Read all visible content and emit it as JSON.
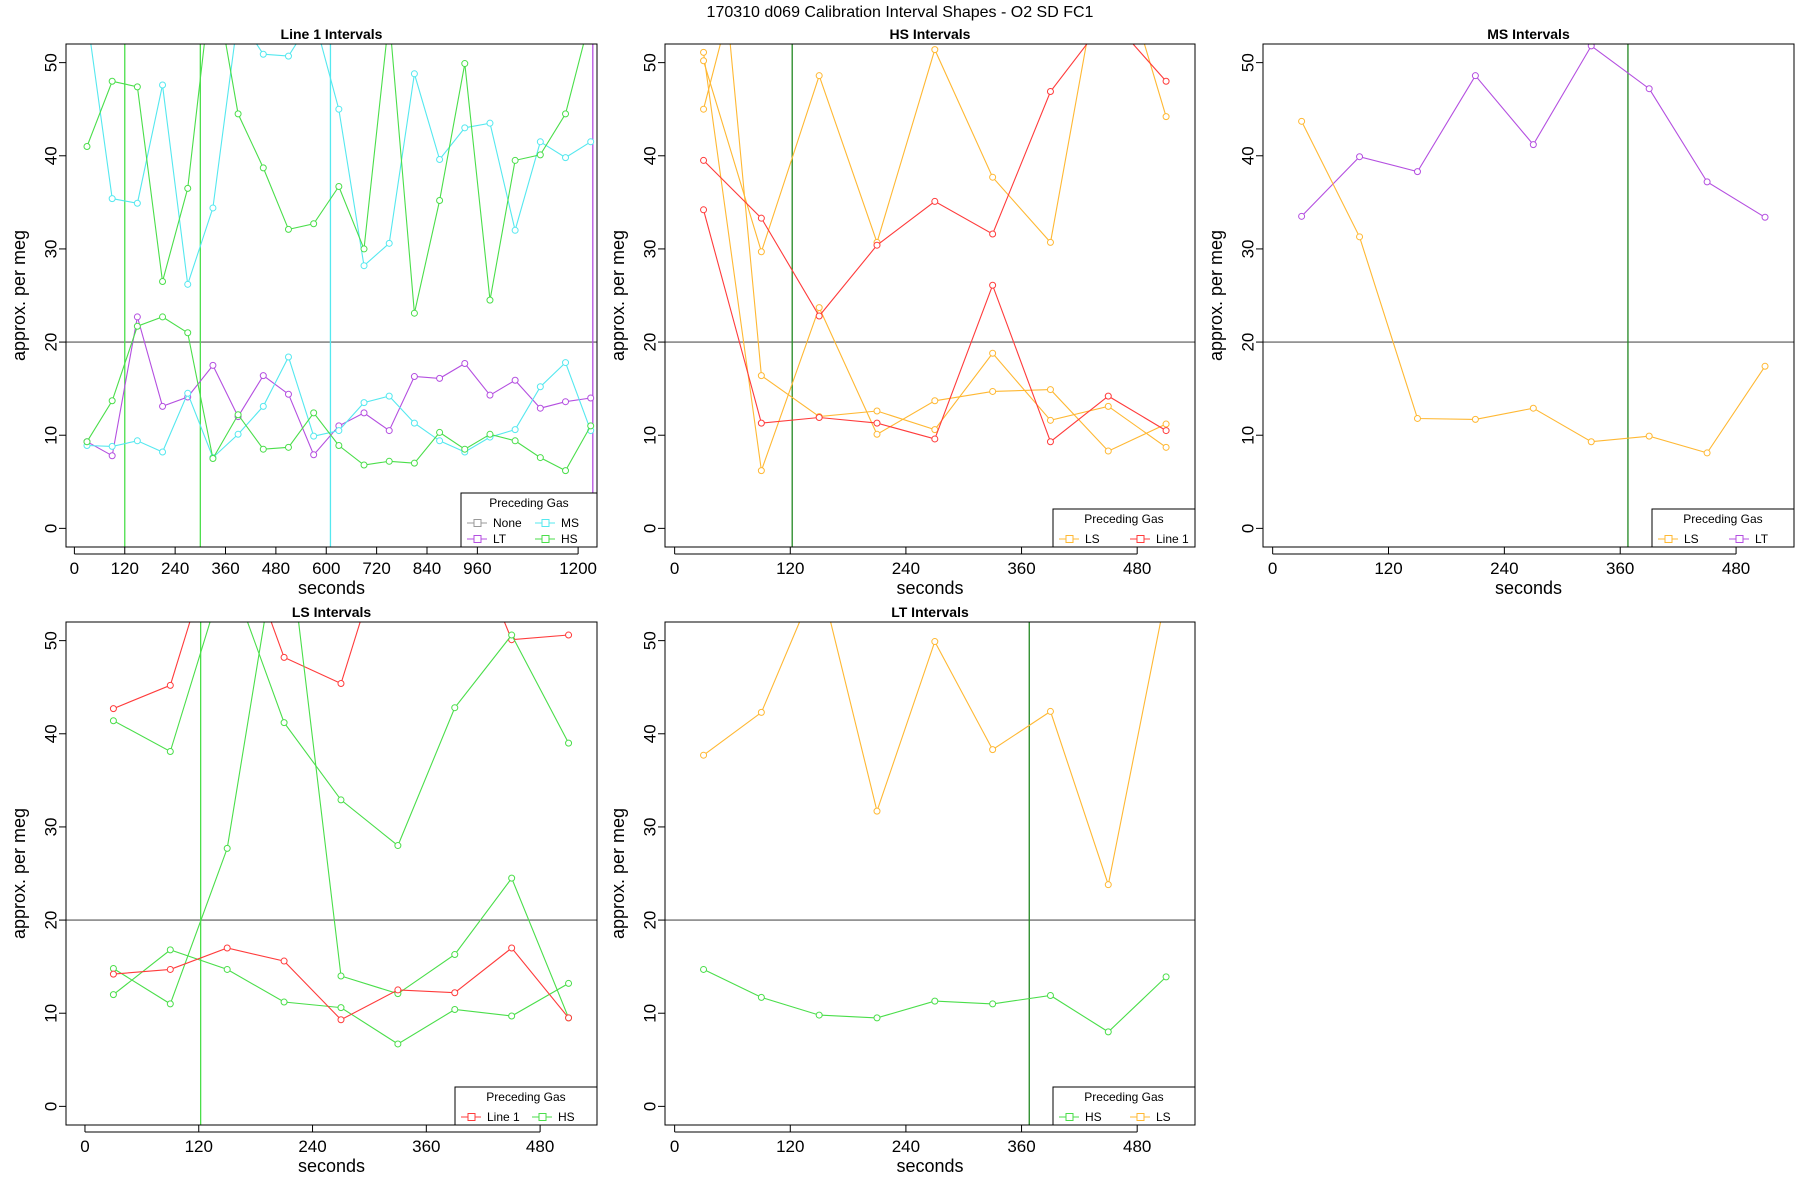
{
  "title": "170310   d069   Calibration Interval Shapes - O2 SD FC1",
  "colors": {
    "None": "#999999",
    "LT": "#b44fe0",
    "MS": "#55e8ef",
    "HS": "#4ade4a",
    "LS": "#ffb833",
    "Line 1": "#ff3b3b",
    "vline": "#228822",
    "hline": "#555555"
  },
  "chart_data": [
    {
      "type": "line",
      "title": "Line 1 Intervals",
      "xlabel": "seconds",
      "ylabel": "approx. per meg",
      "xlim": [
        -20,
        1245
      ],
      "ylim": [
        -2,
        52
      ],
      "xticks": [
        0,
        120,
        240,
        360,
        480,
        600,
        720,
        840,
        960,
        1200
      ],
      "xtick_labels": [
        "0",
        "120",
        "240",
        "360",
        "480",
        "600",
        "720",
        "840",
        "960",
        "1200"
      ],
      "yticks": [
        0,
        10,
        20,
        30,
        40,
        50
      ],
      "hline": 20,
      "vlines": [
        {
          "x": 120,
          "color": "HS"
        },
        {
          "x": 300,
          "color": "HS"
        },
        {
          "x": 610,
          "color": "MS"
        },
        {
          "x": 1235,
          "color": "LT"
        }
      ],
      "legend": {
        "title": "Preceding Gas",
        "position": "bottom-right",
        "entries": [
          "None",
          "MS",
          "LT",
          "HS"
        ]
      },
      "series": [
        {
          "name": "MS",
          "color": "MS",
          "x": [
            30,
            90,
            150,
            210,
            270,
            330,
            390,
            450,
            510,
            570,
            630,
            690,
            750,
            810,
            870,
            930,
            990,
            1050,
            1110,
            1170,
            1230
          ],
          "y": [
            55,
            35.4,
            34.9,
            47.6,
            26.2,
            34.4,
            55,
            50.9,
            50.7,
            55,
            45,
            28.2,
            30.6,
            48.8,
            39.6,
            43,
            43.5,
            32,
            41.5,
            39.8,
            41.5
          ]
        },
        {
          "name": "HS",
          "color": "HS",
          "x": [
            30,
            90,
            150,
            210,
            270,
            330,
            390,
            450,
            510,
            570,
            630,
            690,
            750,
            810,
            870,
            930,
            990,
            1050,
            1110,
            1170,
            1230
          ],
          "y": [
            41,
            48,
            47.4,
            26.5,
            36.5,
            60,
            44.5,
            38.7,
            32.1,
            32.7,
            36.7,
            30,
            55,
            23.1,
            35.2,
            49.9,
            24.5,
            39.5,
            40.1,
            44.5,
            55
          ]
        },
        {
          "name": "LT",
          "color": "LT",
          "x": [
            30,
            90,
            150,
            210,
            270,
            330,
            390,
            450,
            510,
            570,
            630,
            690,
            750,
            810,
            870,
            930,
            990,
            1050,
            1110,
            1170,
            1230
          ],
          "y": [
            9.3,
            7.8,
            22.7,
            13.1,
            14.1,
            17.5,
            12,
            16.4,
            14.4,
            7.9,
            11,
            12.4,
            10.5,
            16.3,
            16.1,
            17.7,
            14.3,
            15.9,
            12.9,
            13.6,
            14
          ]
        },
        {
          "name": "MS",
          "color": "MS",
          "x": [
            30,
            90,
            150,
            210,
            270,
            330,
            390,
            450,
            510,
            570,
            630,
            690,
            750,
            810,
            870,
            930,
            990,
            1050,
            1110,
            1170,
            1230
          ],
          "y": [
            8.9,
            8.8,
            9.4,
            8.2,
            14.5,
            7.6,
            10.1,
            13.1,
            18.4,
            9.9,
            10.5,
            13.5,
            14.2,
            11.3,
            9.4,
            8.2,
            9.8,
            10.6,
            15.2,
            17.8,
            10.5
          ]
        },
        {
          "name": "HS",
          "color": "HS",
          "x": [
            30,
            90,
            150,
            210,
            270,
            330,
            390,
            450,
            510,
            570,
            630,
            690,
            750,
            810,
            870,
            930,
            990,
            1050,
            1110,
            1170,
            1230
          ],
          "y": [
            9.3,
            13.7,
            21.7,
            22.7,
            21,
            7.5,
            12.2,
            8.5,
            8.7,
            12.4,
            8.9,
            6.8,
            7.2,
            7,
            10.3,
            8.5,
            10.1,
            9.4,
            7.6,
            6.2,
            11
          ]
        }
      ]
    },
    {
      "type": "line",
      "title": "HS Intervals",
      "xlabel": "seconds",
      "ylabel": "approx. per meg",
      "xlim": [
        -10,
        540
      ],
      "ylim": [
        -2,
        52
      ],
      "xticks": [
        0,
        120,
        240,
        360,
        480
      ],
      "xtick_labels": [
        "0",
        "120",
        "240",
        "360",
        "480"
      ],
      "yticks": [
        0,
        10,
        20,
        30,
        40,
        50
      ],
      "hline": 20,
      "vlines": [
        {
          "x": 122,
          "color": "vline"
        }
      ],
      "legend": {
        "title": "Preceding Gas",
        "position": "bottom-right",
        "entries": [
          "LS",
          "Line 1"
        ]
      },
      "series": [
        {
          "name": "LS",
          "color": "LS",
          "x": [
            30,
            90,
            150,
            210,
            270,
            330,
            390,
            450,
            510
          ],
          "y": [
            51.1,
            6.2,
            23.7,
            10.1,
            13.7,
            14.7,
            14.9,
            8.3,
            11.2
          ]
        },
        {
          "name": "LS",
          "color": "LS",
          "x": [
            30,
            90,
            150,
            210,
            270,
            330,
            390,
            450,
            510
          ],
          "y": [
            50.2,
            29.7,
            48.6,
            30.7,
            51.4,
            37.7,
            30.7,
            65,
            44.2
          ]
        },
        {
          "name": "LS",
          "color": "LS",
          "x": [
            30,
            55,
            90,
            150,
            210,
            270,
            330,
            390,
            450,
            510
          ],
          "y": [
            45,
            55,
            16.4,
            12,
            12.6,
            10.6,
            18.8,
            11.6,
            13.1,
            8.7
          ]
        },
        {
          "name": "Line 1",
          "color": "Line 1",
          "x": [
            30,
            90,
            150,
            210,
            270,
            330,
            390,
            450,
            510
          ],
          "y": [
            39.5,
            33.3,
            22.8,
            30.4,
            35.1,
            31.6,
            46.9,
            55,
            48
          ]
        },
        {
          "name": "Line 1",
          "color": "Line 1",
          "x": [
            30,
            90,
            150,
            210,
            270,
            330,
            390,
            450,
            510
          ],
          "y": [
            34.2,
            11.3,
            11.9,
            11.3,
            9.6,
            26.1,
            9.3,
            14.2,
            10.5
          ]
        }
      ]
    },
    {
      "type": "line",
      "title": "MS Intervals",
      "xlabel": "seconds",
      "ylabel": "approx. per meg",
      "xlim": [
        -10,
        540
      ],
      "ylim": [
        -2,
        52
      ],
      "xticks": [
        0,
        120,
        240,
        360,
        480
      ],
      "xtick_labels": [
        "0",
        "120",
        "240",
        "360",
        "480"
      ],
      "yticks": [
        0,
        10,
        20,
        30,
        40,
        50
      ],
      "hline": 20,
      "vlines": [
        {
          "x": 368,
          "color": "vline"
        }
      ],
      "legend": {
        "title": "Preceding Gas",
        "position": "bottom-right",
        "entries": [
          "LS",
          "LT"
        ]
      },
      "series": [
        {
          "name": "LT",
          "color": "LT",
          "x": [
            30,
            90,
            150,
            210,
            270,
            330,
            390,
            450,
            510
          ],
          "y": [
            33.5,
            39.9,
            38.3,
            48.6,
            41.2,
            51.8,
            47.2,
            37.2,
            33.4
          ]
        },
        {
          "name": "LS",
          "color": "LS",
          "x": [
            30,
            90,
            150,
            210,
            270,
            330,
            390,
            450,
            510
          ],
          "y": [
            43.7,
            31.3,
            11.8,
            11.7,
            12.9,
            9.3,
            9.9,
            8.1,
            17.4
          ]
        }
      ]
    },
    {
      "type": "line",
      "title": "LS Intervals",
      "xlabel": "seconds",
      "ylabel": "approx. per meg",
      "xlim": [
        -20,
        540
      ],
      "ylim": [
        -2,
        52
      ],
      "xticks": [
        0,
        120,
        240,
        360,
        480
      ],
      "xtick_labels": [
        "0",
        "120",
        "240",
        "360",
        "480"
      ],
      "yticks": [
        0,
        10,
        20,
        30,
        40,
        50
      ],
      "hline": 20,
      "vlines": [
        {
          "x": 122,
          "color": "HS"
        }
      ],
      "legend": {
        "title": "Preceding Gas",
        "position": "bottom-right",
        "entries": [
          "Line 1",
          "HS"
        ]
      },
      "series": [
        {
          "name": "Line 1",
          "color": "Line 1",
          "x": [
            30,
            90,
            150,
            210,
            270,
            330
          ],
          "y": [
            42.7,
            45.2,
            65,
            48.2,
            45.4,
            65
          ]
        },
        {
          "name": "Line 1",
          "color": "Line 1",
          "x": [
            390,
            450,
            510
          ],
          "y": [
            65,
            50.1,
            50.6
          ]
        },
        {
          "name": "HS",
          "color": "HS",
          "x": [
            30,
            90,
            150,
            210,
            270,
            330,
            390,
            450,
            510
          ],
          "y": [
            41.4,
            38.1,
            58,
            41.2,
            32.9,
            28,
            42.8,
            50.6,
            39
          ]
        },
        {
          "name": "HS",
          "color": "HS",
          "x": [
            30,
            90,
            150,
            210,
            270,
            330,
            390,
            450,
            510
          ],
          "y": [
            12,
            16.8,
            14.7,
            11.2,
            10.6,
            6.7,
            10.4,
            9.7,
            13.2
          ]
        },
        {
          "name": "HS",
          "color": "HS",
          "x": [
            30,
            90,
            150,
            210,
            270,
            330,
            390,
            450,
            510
          ],
          "y": [
            14.8,
            11,
            27.7,
            65,
            14,
            12.1,
            16.3,
            24.5,
            9.5
          ]
        },
        {
          "name": "Line 1",
          "color": "Line 1",
          "x": [
            30,
            90,
            150,
            210,
            270,
            330,
            390,
            450,
            510
          ],
          "y": [
            14.2,
            14.7,
            17,
            15.6,
            9.3,
            12.5,
            12.2,
            17,
            9.5
          ]
        }
      ]
    },
    {
      "type": "line",
      "title": "LT Intervals",
      "xlabel": "seconds",
      "ylabel": "approx. per meg",
      "xlim": [
        -10,
        540
      ],
      "ylim": [
        -2,
        52
      ],
      "xticks": [
        0,
        120,
        240,
        360,
        480
      ],
      "xtick_labels": [
        "0",
        "120",
        "240",
        "360",
        "480"
      ],
      "yticks": [
        0,
        10,
        20,
        30,
        40,
        50
      ],
      "hline": 20,
      "vlines": [
        {
          "x": 368,
          "color": "vline"
        }
      ],
      "legend": {
        "title": "Preceding Gas",
        "position": "bottom-right",
        "entries": [
          "HS",
          "LS"
        ]
      },
      "series": [
        {
          "name": "LS",
          "color": "LS",
          "x": [
            30,
            90,
            150,
            210,
            270,
            330,
            390,
            450,
            510
          ],
          "y": [
            37.7,
            42.3,
            57,
            31.7,
            49.9,
            38.3,
            42.4,
            23.8,
            55
          ]
        },
        {
          "name": "HS",
          "color": "HS",
          "x": [
            30,
            90,
            150,
            210,
            270,
            330,
            390,
            450,
            510
          ],
          "y": [
            14.7,
            11.7,
            9.8,
            9.5,
            11.3,
            11,
            11.9,
            8,
            13.9
          ]
        }
      ]
    }
  ]
}
